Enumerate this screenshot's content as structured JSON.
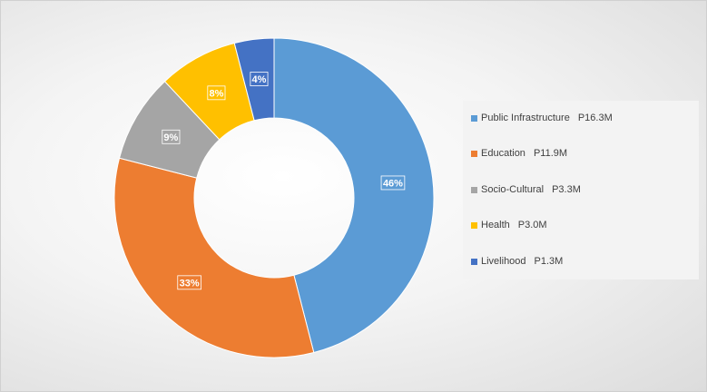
{
  "chart_data": {
    "type": "pie",
    "style": "donut",
    "categories": [
      "Public Infrastructure",
      "Education",
      "Socio-Cultural",
      "Health",
      "Livelihood"
    ],
    "values": [
      46,
      33,
      9,
      8,
      4
    ],
    "data_labels": [
      "46%",
      "33%",
      "9%",
      "8%",
      "4%"
    ],
    "legend_values": [
      "P16.3M",
      "P11.9M",
      "P3.3M",
      "P3.0M",
      "P1.3M"
    ],
    "colors": [
      "#5b9bd5",
      "#ed7d31",
      "#a5a5a5",
      "#ffc000",
      "#4472c4"
    ],
    "legend_position": "right"
  }
}
